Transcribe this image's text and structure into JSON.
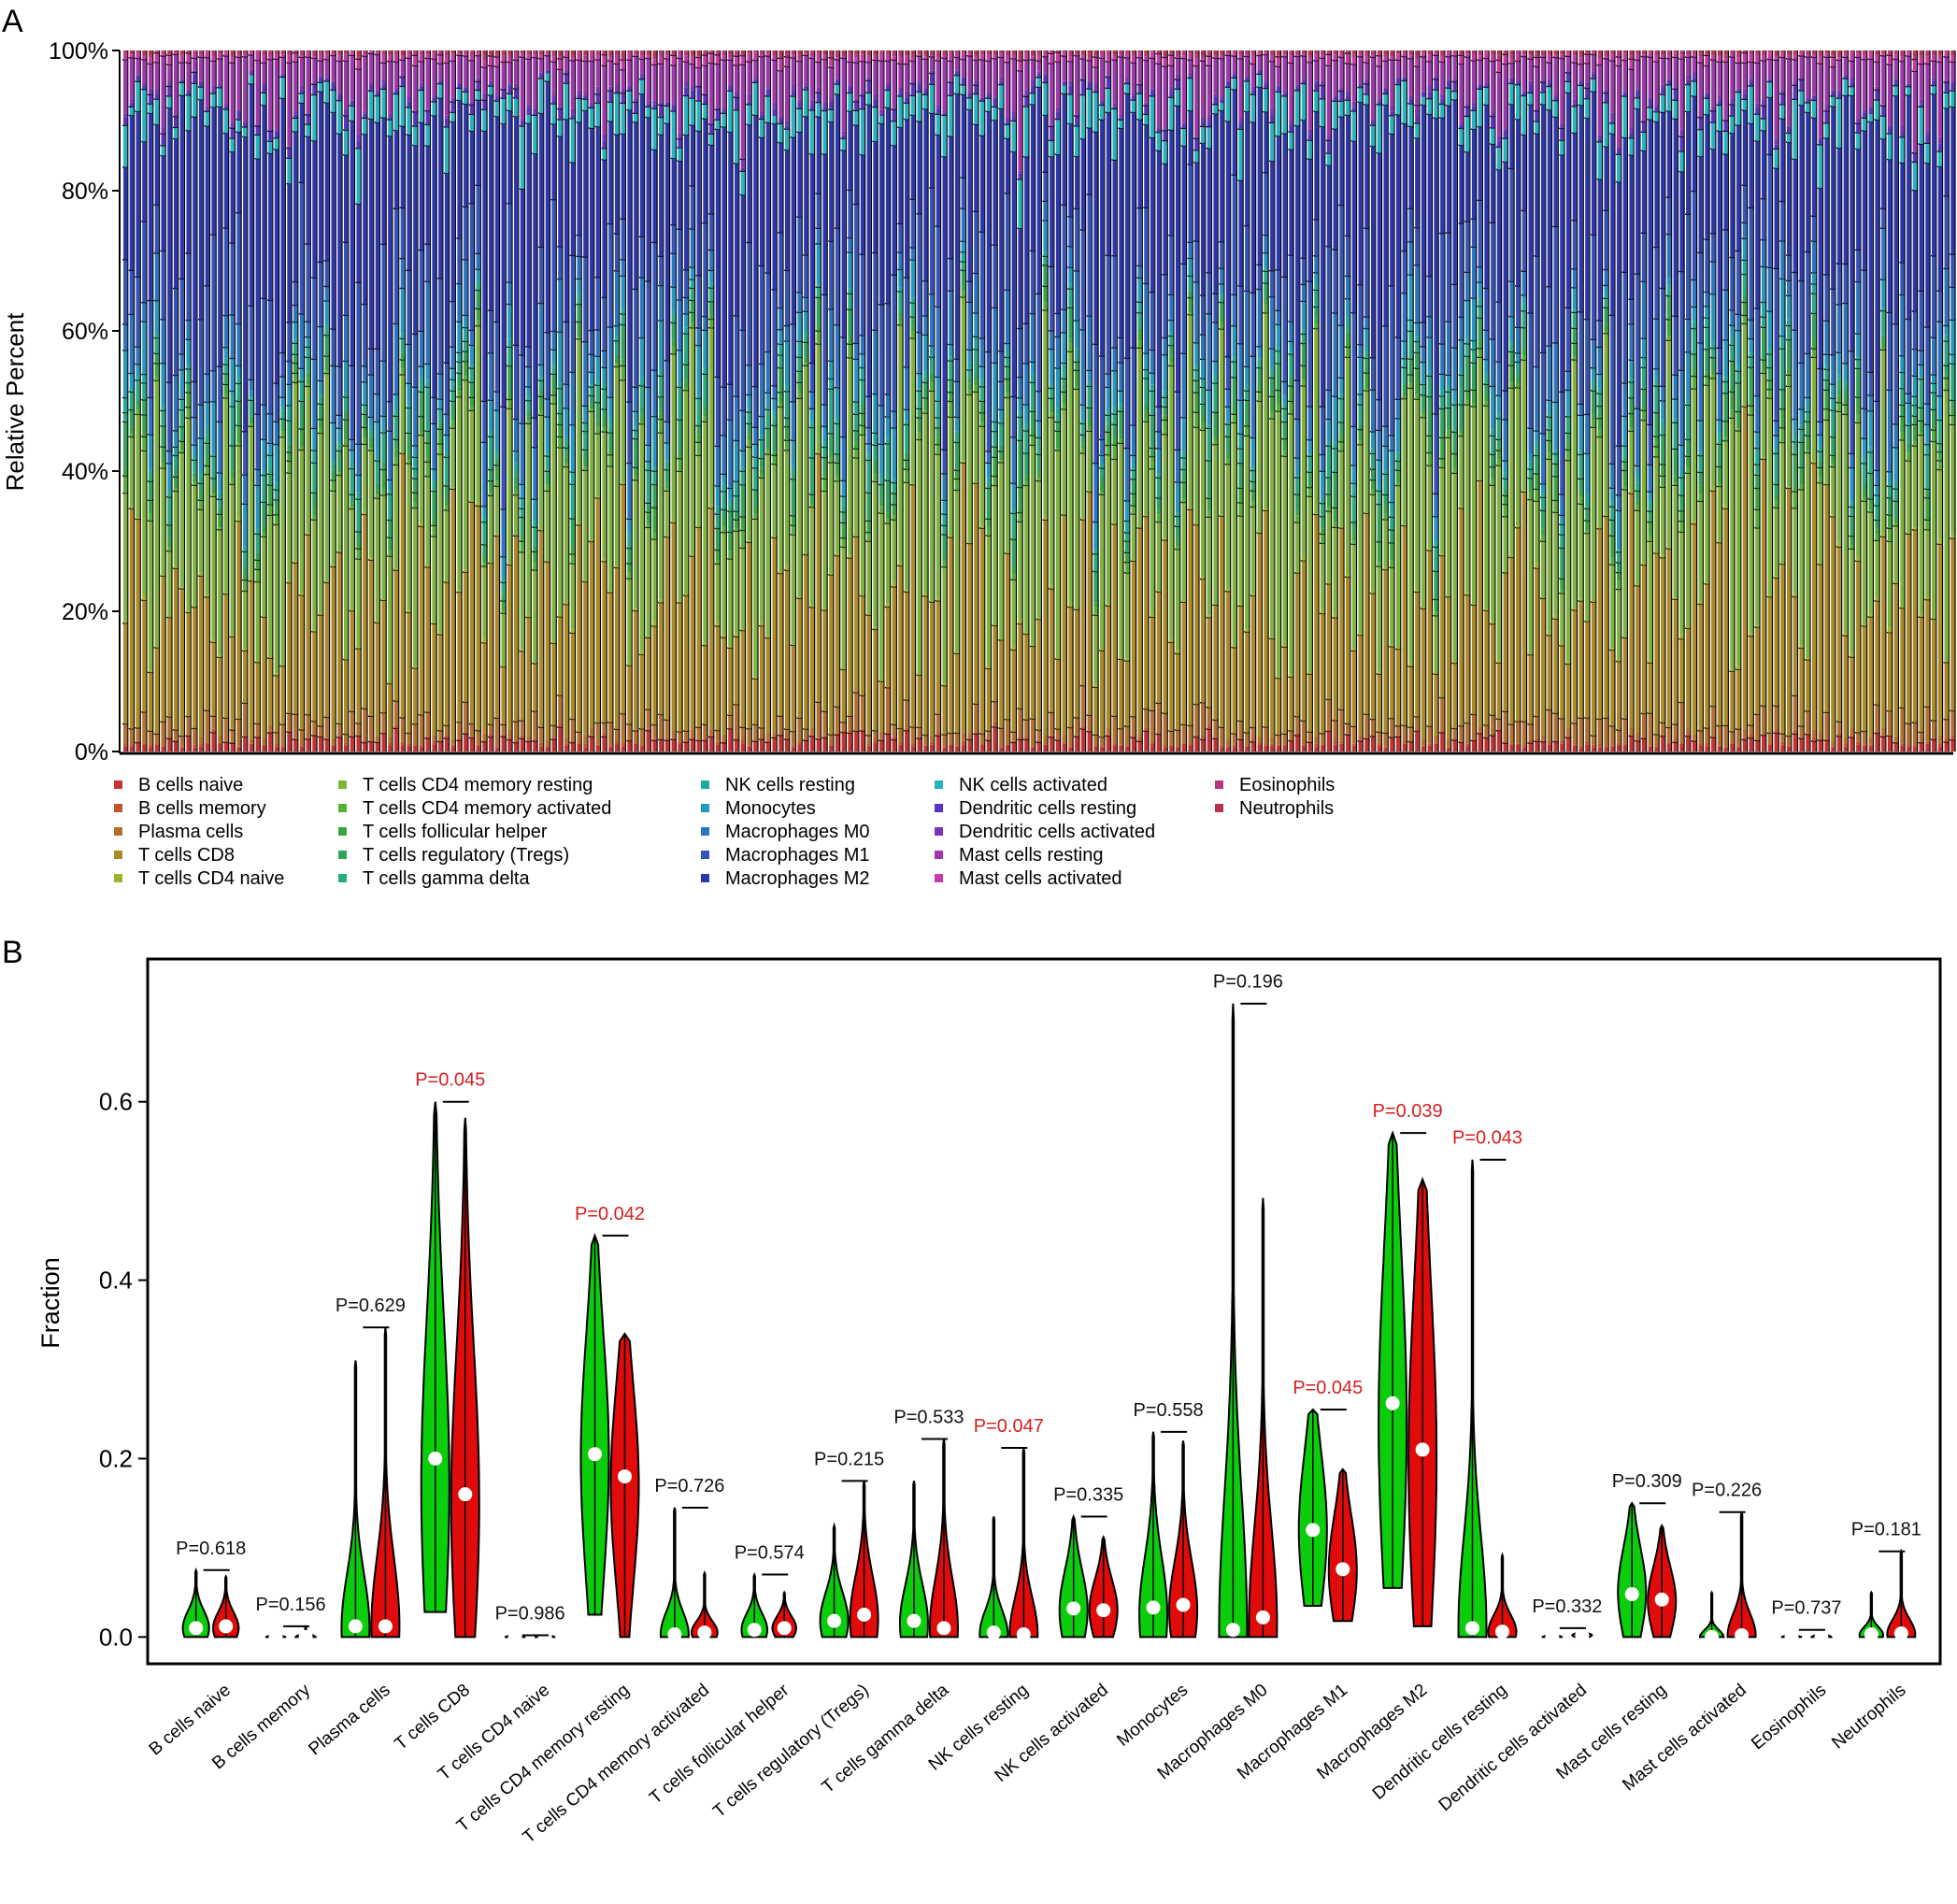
{
  "panels": {
    "a": {
      "label": "A"
    },
    "b": {
      "label": "B"
    }
  },
  "chart_data": [
    {
      "type": "bar",
      "subtype": "stacked-percent",
      "sample_count": 291,
      "ylabel": "Relative Percent",
      "ylim": [
        0,
        100
      ],
      "y_ticks": [
        0,
        20,
        40,
        60,
        80,
        100
      ],
      "y_tick_labels": [
        "0%",
        "20%",
        "40%",
        "60%",
        "80%",
        "100%"
      ],
      "legend_position": "bottom",
      "legend_columns": [
        [
          "B cells naive",
          "B cells memory",
          "Plasma cells",
          "T cells CD8",
          "T cells CD4 naive"
        ],
        [
          "T cells CD4 memory resting",
          "T cells CD4 memory activated",
          "T cells follicular helper",
          "T cells regulatory (Tregs)",
          "T cells gamma delta"
        ],
        [
          "NK cells resting",
          "Monocytes",
          "Macrophages M0",
          "Macrophages M1",
          "Macrophages M2"
        ],
        [
          "NK cells activated",
          "Dendritic cells resting",
          "Dendritic cells activated",
          "Mast cells resting",
          "Mast cells activated"
        ],
        [
          "Eosinophils",
          "Neutrophils"
        ]
      ],
      "series": [
        {
          "name": "B cells naive",
          "color": "#c83232",
          "approx_mean_percent": 1.5
        },
        {
          "name": "B cells memory",
          "color": "#c0582c",
          "approx_mean_percent": 0.3
        },
        {
          "name": "Plasma cells",
          "color": "#b5702c",
          "approx_mean_percent": 2.5
        },
        {
          "name": "T cells CD8",
          "color": "#ad8a22",
          "approx_mean_percent": 20
        },
        {
          "name": "T cells CD4 naive",
          "color": "#9fb22a",
          "approx_mean_percent": 0.3
        },
        {
          "name": "T cells CD4 memory resting",
          "color": "#7fb43a",
          "approx_mean_percent": 21
        },
        {
          "name": "T cells CD4 memory activated",
          "color": "#55b036",
          "approx_mean_percent": 1.0
        },
        {
          "name": "T cells follicular helper",
          "color": "#3aa63e",
          "approx_mean_percent": 1.5
        },
        {
          "name": "T cells regulatory (Tregs)",
          "color": "#2ea55a",
          "approx_mean_percent": 2.5
        },
        {
          "name": "T cells gamma delta",
          "color": "#28aa82",
          "approx_mean_percent": 2.5
        },
        {
          "name": "NK cells resting",
          "color": "#20aa9e",
          "approx_mean_percent": 1.0
        },
        {
          "name": "Monocytes",
          "color": "#2398c0",
          "approx_mean_percent": 3.5
        },
        {
          "name": "Macrophages M0",
          "color": "#2b76c4",
          "approx_mean_percent": 5.0
        },
        {
          "name": "Macrophages M1",
          "color": "#3454bb",
          "approx_mean_percent": 10
        },
        {
          "name": "Macrophages M2",
          "color": "#2c36b0",
          "approx_mean_percent": 24
        },
        {
          "name": "NK cells activated",
          "color": "#26b3c3",
          "approx_mean_percent": 3.5
        },
        {
          "name": "Dendritic cells resting",
          "color": "#5a34c0",
          "approx_mean_percent": 1.0
        },
        {
          "name": "Dendritic cells activated",
          "color": "#7c35b8",
          "approx_mean_percent": 0.5
        },
        {
          "name": "Mast cells resting",
          "color": "#a236b2",
          "approx_mean_percent": 5.5
        },
        {
          "name": "Mast cells activated",
          "color": "#c83aa8",
          "approx_mean_percent": 0.8
        },
        {
          "name": "Eosinophils",
          "color": "#b8347e",
          "approx_mean_percent": 0.3
        },
        {
          "name": "Neutrophils",
          "color": "#b8344e",
          "approx_mean_percent": 0.4
        }
      ]
    },
    {
      "type": "violin",
      "ylabel": "Fraction",
      "ylim": [
        -0.03,
        0.76
      ],
      "y_ticks": [
        0.0,
        0.2,
        0.4,
        0.6
      ],
      "y_tick_labels": [
        "0.0",
        "0.2",
        "0.4",
        "0.6"
      ],
      "group_colors": [
        "#0ccd0c",
        "#e00c0c"
      ],
      "significant_color": "#d42020",
      "normal_color": "#111111",
      "categories": [
        "B cells naive",
        "B cells memory",
        "Plasma cells",
        "T cells CD8",
        "T cells CD4 naive",
        "T cells CD4 memory resting",
        "T cells CD4 memory activated",
        "T cells follicular helper",
        "T cells regulatory (Tregs)",
        "T cells gamma delta",
        "NK cells resting",
        "NK cells activated",
        "Monocytes",
        "Macrophages M0",
        "Macrophages M1",
        "Macrophages M2",
        "Dendritic cells resting",
        "Dendritic cells activated",
        "Mast cells resting",
        "Mast cells activated",
        "Eosinophils",
        "Neutrophils"
      ],
      "p_values": [
        "P=0.618",
        "P=0.156",
        "P=0.629",
        "P=0.045",
        "P=0.986",
        "P=0.042",
        "P=0.726",
        "P=0.574",
        "P=0.215",
        "P=0.533",
        "P=0.047",
        "P=0.335",
        "P=0.558",
        "P=0.196",
        "P=0.045",
        "P=0.039",
        "P=0.043",
        "P=0.332",
        "P=0.309",
        "P=0.226",
        "P=0.737",
        "P=0.181"
      ],
      "significant": [
        false,
        false,
        false,
        true,
        false,
        true,
        false,
        false,
        false,
        false,
        true,
        false,
        false,
        false,
        true,
        true,
        true,
        false,
        false,
        false,
        false,
        false
      ],
      "groups": [
        {
          "color": "#0ccd0c",
          "max": [
            0.075,
            0.003,
            0.31,
            0.6,
            0.002,
            0.45,
            0.145,
            0.07,
            0.125,
            0.175,
            0.135,
            0.135,
            0.23,
            0.71,
            0.255,
            0.565,
            0.535,
            0.005,
            0.15,
            0.05,
            0.003,
            0.05
          ],
          "min": [
            0.0,
            0.0,
            0.0,
            0.028,
            0.0,
            0.025,
            0.0,
            0.0,
            0.0,
            0.0,
            0.0,
            0.0,
            0.0,
            0.0,
            0.035,
            0.055,
            0.0,
            0.0,
            0.0,
            0.0,
            0.0,
            0.0
          ],
          "median": [
            0.01,
            0.0,
            0.012,
            0.2,
            0.0,
            0.205,
            0.003,
            0.008,
            0.018,
            0.018,
            0.005,
            0.032,
            0.033,
            0.008,
            0.12,
            0.262,
            0.01,
            0.0,
            0.048,
            0.0,
            0.0,
            0.003
          ],
          "mode": [
            0.01,
            0.0,
            0.01,
            0.17,
            0.0,
            0.2,
            0.003,
            0.008,
            0.018,
            0.015,
            0.003,
            0.03,
            0.025,
            0.005,
            0.12,
            0.24,
            0.01,
            0.0,
            0.05,
            0.0,
            0.0,
            0.002
          ],
          "spread": [
            0.45,
            0.2,
            0.35,
            0.6,
            0.2,
            0.6,
            0.3,
            0.45,
            0.45,
            0.45,
            0.35,
            0.6,
            0.5,
            0.4,
            0.7,
            0.7,
            0.35,
            0.2,
            0.6,
            0.25,
            0.2,
            0.3
          ]
        },
        {
          "color": "#e00c0c",
          "max": [
            0.068,
            0.012,
            0.347,
            0.582,
            0.002,
            0.34,
            0.072,
            0.05,
            0.175,
            0.222,
            0.212,
            0.112,
            0.22,
            0.492,
            0.188,
            0.513,
            0.092,
            0.01,
            0.125,
            0.14,
            0.008,
            0.096
          ],
          "min": [
            0.0,
            0.0,
            0.0,
            0.0,
            0.0,
            0.0,
            0.0,
            0.0,
            0.0,
            0.0,
            0.0,
            0.0,
            0.0,
            0.0,
            0.018,
            0.012,
            0.0,
            0.0,
            0.0,
            0.0,
            0.0,
            0.0
          ],
          "median": [
            0.012,
            0.0,
            0.012,
            0.16,
            0.0,
            0.18,
            0.005,
            0.01,
            0.025,
            0.01,
            0.003,
            0.03,
            0.036,
            0.022,
            0.076,
            0.21,
            0.006,
            0.002,
            0.042,
            0.002,
            0.0,
            0.004
          ],
          "mode": [
            0.01,
            0.0,
            0.012,
            0.15,
            0.0,
            0.17,
            0.005,
            0.01,
            0.02,
            0.01,
            0.003,
            0.03,
            0.03,
            0.015,
            0.075,
            0.2,
            0.006,
            0.002,
            0.04,
            0.002,
            0.0,
            0.003
          ],
          "spread": [
            0.45,
            0.2,
            0.4,
            0.55,
            0.2,
            0.6,
            0.3,
            0.45,
            0.5,
            0.45,
            0.35,
            0.55,
            0.45,
            0.4,
            0.65,
            0.7,
            0.35,
            0.25,
            0.55,
            0.3,
            0.25,
            0.3
          ]
        }
      ]
    }
  ]
}
